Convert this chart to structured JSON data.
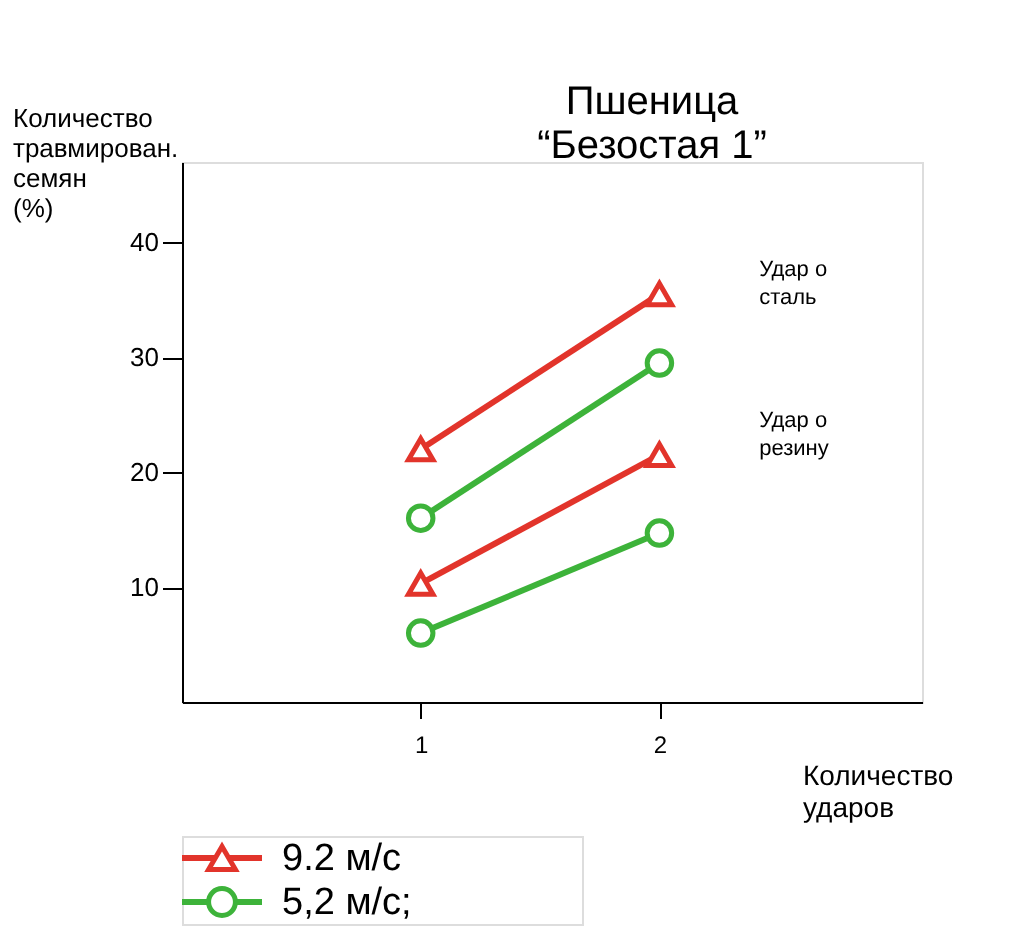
{
  "chart_data": {
    "type": "line",
    "title": [
      "Пшеница",
      "“Безостая 1”"
    ],
    "ylabel": [
      "Количество",
      "травмирован.",
      "семян",
      "(%)"
    ],
    "xlabel": [
      "Количество",
      "ударов"
    ],
    "x": [
      1,
      2
    ],
    "xlim": [
      0,
      3.1
    ],
    "xticks": [
      1,
      2
    ],
    "ylim": [
      0,
      47
    ],
    "yticks": [
      10,
      20,
      30,
      40
    ],
    "series": [
      {
        "name": "9.2 м/с",
        "color": "#e2342b",
        "marker": "triangle",
        "values": [
          22,
          35.5
        ]
      },
      {
        "name": "5,2 м/с;",
        "color": "#3db33a",
        "marker": "circle",
        "values": [
          16,
          29.5
        ]
      },
      {
        "color": "#e2342b",
        "marker": "triangle",
        "values": [
          10.3,
          21.5
        ]
      },
      {
        "color": "#3db33a",
        "marker": "circle",
        "values": [
          6,
          14.7
        ]
      }
    ],
    "annotations": [
      "Удар о сталь",
      "Удар о резину"
    ],
    "grid": false,
    "legend": "bottom left",
    "line_style": "solid"
  }
}
